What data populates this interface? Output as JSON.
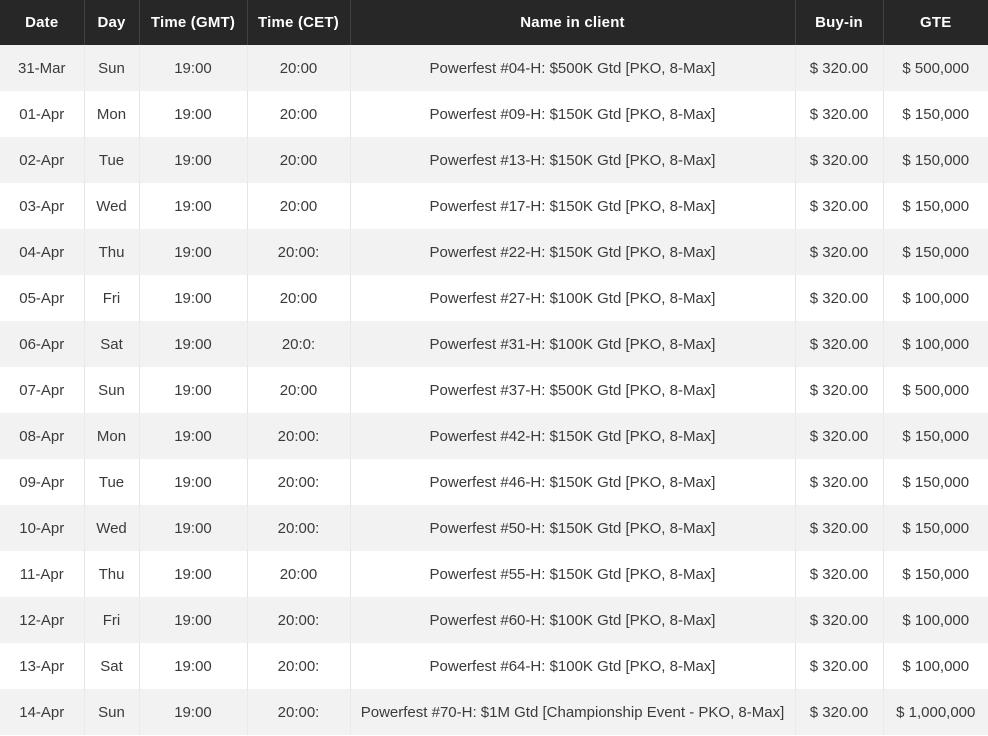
{
  "table": {
    "columns": [
      {
        "key": "date",
        "label": "Date"
      },
      {
        "key": "day",
        "label": "Day"
      },
      {
        "key": "gmt",
        "label": "Time (GMT)"
      },
      {
        "key": "cet",
        "label": "Time (CET)"
      },
      {
        "key": "name",
        "label": "Name in client"
      },
      {
        "key": "buyin",
        "label": "Buy-in"
      },
      {
        "key": "gte",
        "label": "GTE"
      }
    ],
    "rows": [
      {
        "date": "31-Mar",
        "day": "Sun",
        "gmt": "19:00",
        "cet": "20:00",
        "name": "Powerfest #04-H: $500K Gtd [PKO, 8-Max]",
        "buyin": "$ 320.00",
        "gte": "$ 500,000"
      },
      {
        "date": "01-Apr",
        "day": "Mon",
        "gmt": "19:00",
        "cet": "20:00",
        "name": "Powerfest #09-H: $150K Gtd [PKO, 8-Max]",
        "buyin": "$ 320.00",
        "gte": "$ 150,000"
      },
      {
        "date": "02-Apr",
        "day": "Tue",
        "gmt": "19:00",
        "cet": "20:00",
        "name": "Powerfest #13-H: $150K Gtd [PKO, 8-Max]",
        "buyin": "$ 320.00",
        "gte": "$ 150,000"
      },
      {
        "date": "03-Apr",
        "day": "Wed",
        "gmt": "19:00",
        "cet": "20:00",
        "name": "Powerfest #17-H: $150K Gtd [PKO, 8-Max]",
        "buyin": "$ 320.00",
        "gte": "$ 150,000"
      },
      {
        "date": "04-Apr",
        "day": "Thu",
        "gmt": "19:00",
        "cet": "20:00:",
        "name": "Powerfest #22-H: $150K Gtd [PKO, 8-Max]",
        "buyin": "$ 320.00",
        "gte": "$ 150,000"
      },
      {
        "date": "05-Apr",
        "day": "Fri",
        "gmt": "19:00",
        "cet": "20:00",
        "name": "Powerfest #27-H: $100K Gtd [PKO, 8-Max]",
        "buyin": "$ 320.00",
        "gte": "$ 100,000"
      },
      {
        "date": "06-Apr",
        "day": "Sat",
        "gmt": "19:00",
        "cet": "20:0:",
        "name": "Powerfest #31-H: $100K Gtd [PKO, 8-Max]",
        "buyin": "$ 320.00",
        "gte": "$ 100,000"
      },
      {
        "date": "07-Apr",
        "day": "Sun",
        "gmt": "19:00",
        "cet": "20:00",
        "name": "Powerfest #37-H: $500K Gtd [PKO, 8-Max]",
        "buyin": "$ 320.00",
        "gte": "$ 500,000"
      },
      {
        "date": "08-Apr",
        "day": "Mon",
        "gmt": "19:00",
        "cet": "20:00:",
        "name": "Powerfest #42-H: $150K Gtd [PKO, 8-Max]",
        "buyin": "$ 320.00",
        "gte": "$ 150,000"
      },
      {
        "date": "09-Apr",
        "day": "Tue",
        "gmt": "19:00",
        "cet": "20:00:",
        "name": "Powerfest #46-H: $150K Gtd [PKO, 8-Max]",
        "buyin": "$ 320.00",
        "gte": "$ 150,000"
      },
      {
        "date": "10-Apr",
        "day": "Wed",
        "gmt": "19:00",
        "cet": "20:00:",
        "name": "Powerfest #50-H: $150K Gtd [PKO, 8-Max]",
        "buyin": "$ 320.00",
        "gte": "$ 150,000"
      },
      {
        "date": "11-Apr",
        "day": "Thu",
        "gmt": "19:00",
        "cet": "20:00",
        "name": "Powerfest #55-H: $150K Gtd [PKO, 8-Max]",
        "buyin": "$ 320.00",
        "gte": "$ 150,000"
      },
      {
        "date": "12-Apr",
        "day": "Fri",
        "gmt": "19:00",
        "cet": "20:00:",
        "name": "Powerfest #60-H: $100K Gtd [PKO, 8-Max]",
        "buyin": "$ 320.00",
        "gte": "$ 100,000"
      },
      {
        "date": "13-Apr",
        "day": "Sat",
        "gmt": "19:00",
        "cet": "20:00:",
        "name": "Powerfest #64-H: $100K Gtd [PKO, 8-Max]",
        "buyin": "$ 320.00",
        "gte": "$ 100,000"
      },
      {
        "date": "14-Apr",
        "day": "Sun",
        "gmt": "19:00",
        "cet": "20:00:",
        "name": "Powerfest #70-H: $1M Gtd [Championship Event - PKO, 8-Max]",
        "buyin": "$ 320.00",
        "gte": "$ 1,000,000"
      }
    ]
  },
  "colors": {
    "header_bg": "#272727",
    "header_text": "#ffffff",
    "row_alt_bg": "#f2f2f2",
    "row_bg": "#ffffff",
    "cell_border": "#e3e3e3",
    "body_text": "#3b3b3b"
  }
}
